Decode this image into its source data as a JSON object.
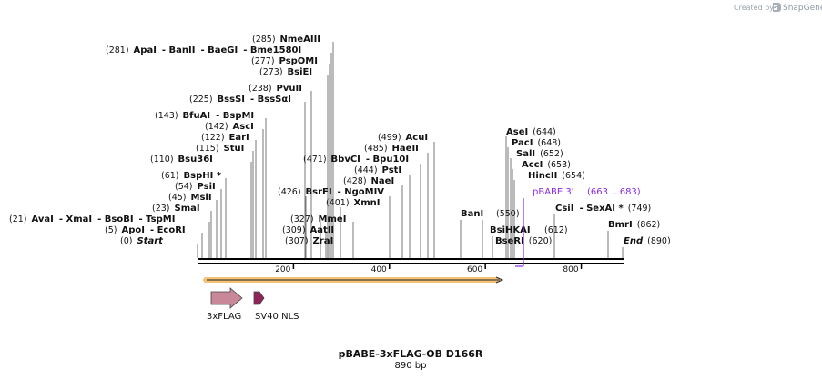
{
  "credit": {
    "prefix": "Created by",
    "brand": "SnapGene"
  },
  "title": "pBABE-3xFLAG-OB D166R",
  "length_label": "890 bp",
  "sites": [
    {
      "id": "s1",
      "seg": [
        {
          "t": "(21)",
          "k": "p"
        },
        {
          "t": "AvaI",
          "k": "n"
        },
        {
          "t": "- XmaI",
          "k": "s"
        },
        {
          "t": "- BsoBI",
          "k": "s"
        },
        {
          "t": "- TspMI",
          "k": "s"
        }
      ]
    },
    {
      "id": "s2",
      "seg": [
        {
          "t": "(5)",
          "k": "p"
        },
        {
          "t": "ApoI",
          "k": "n"
        },
        {
          "t": "- EcoRI",
          "k": "s"
        }
      ]
    },
    {
      "id": "s3",
      "seg": [
        {
          "t": "(0)",
          "k": "p"
        },
        {
          "t": "Start",
          "k": "i"
        }
      ]
    },
    {
      "id": "s4",
      "seg": [
        {
          "t": "(23)",
          "k": "p"
        },
        {
          "t": "SmaI",
          "k": "n"
        }
      ]
    },
    {
      "id": "s5",
      "seg": [
        {
          "t": "(45)",
          "k": "p"
        },
        {
          "t": "MslI",
          "k": "n"
        }
      ]
    },
    {
      "id": "s6",
      "seg": [
        {
          "t": "(54)",
          "k": "p"
        },
        {
          "t": "PsiI",
          "k": "n"
        }
      ]
    },
    {
      "id": "s7",
      "seg": [
        {
          "t": "(61)",
          "k": "p"
        },
        {
          "t": "BspHI *",
          "k": "n"
        }
      ]
    },
    {
      "id": "s8",
      "seg": [
        {
          "t": "(110)",
          "k": "p"
        },
        {
          "t": "Bsu36I",
          "k": "n"
        }
      ]
    },
    {
      "id": "s9",
      "seg": [
        {
          "t": "(115)",
          "k": "p"
        },
        {
          "t": "StuI",
          "k": "n"
        }
      ]
    },
    {
      "id": "s10",
      "seg": [
        {
          "t": "(122)",
          "k": "p"
        },
        {
          "t": "EarI",
          "k": "n"
        }
      ]
    },
    {
      "id": "s11",
      "seg": [
        {
          "t": "(142)",
          "k": "p"
        },
        {
          "t": "AscI",
          "k": "n"
        }
      ]
    },
    {
      "id": "s12",
      "seg": [
        {
          "t": "(143)",
          "k": "p"
        },
        {
          "t": "BfuAI",
          "k": "n"
        },
        {
          "t": "- BspMI",
          "k": "s"
        }
      ]
    },
    {
      "id": "s13",
      "seg": [
        {
          "t": "(225)",
          "k": "p"
        },
        {
          "t": "BssSI",
          "k": "n"
        },
        {
          "t": "- BssSαI",
          "k": "s"
        }
      ]
    },
    {
      "id": "s14",
      "seg": [
        {
          "t": "(238)",
          "k": "p"
        },
        {
          "t": "PvuII",
          "k": "n"
        }
      ]
    },
    {
      "id": "s15",
      "seg": [
        {
          "t": "(273)",
          "k": "p"
        },
        {
          "t": "BsiEI",
          "k": "n"
        }
      ]
    },
    {
      "id": "s16",
      "seg": [
        {
          "t": "(277)",
          "k": "p"
        },
        {
          "t": "PspOMI",
          "k": "n"
        }
      ]
    },
    {
      "id": "s17",
      "seg": [
        {
          "t": "(281)",
          "k": "p"
        },
        {
          "t": "ApaI",
          "k": "n"
        },
        {
          "t": "- BanII",
          "k": "s"
        },
        {
          "t": "- BaeGI",
          "k": "s"
        },
        {
          "t": "- Bme1580I",
          "k": "s"
        }
      ]
    },
    {
      "id": "s18",
      "seg": [
        {
          "t": "(285)",
          "k": "p"
        },
        {
          "t": "NmeAIII",
          "k": "n"
        }
      ]
    },
    {
      "id": "s19",
      "seg": [
        {
          "t": "(307)",
          "k": "p"
        },
        {
          "t": "ZraI",
          "k": "n"
        }
      ]
    },
    {
      "id": "s20",
      "seg": [
        {
          "t": "(309)",
          "k": "p"
        },
        {
          "t": "AatII",
          "k": "n"
        }
      ]
    },
    {
      "id": "s21",
      "seg": [
        {
          "t": "(327)",
          "k": "p"
        },
        {
          "t": "MmeI",
          "k": "n"
        }
      ]
    },
    {
      "id": "s22",
      "seg": [
        {
          "t": "(401)",
          "k": "p"
        },
        {
          "t": "XmnI",
          "k": "n"
        }
      ]
    },
    {
      "id": "s23",
      "seg": [
        {
          "t": "(426)",
          "k": "p"
        },
        {
          "t": "BsrFI",
          "k": "n"
        },
        {
          "t": "- NgoMIV",
          "k": "s"
        }
      ]
    },
    {
      "id": "s24",
      "seg": [
        {
          "t": "(428)",
          "k": "p"
        },
        {
          "t": "NaeI",
          "k": "n"
        }
      ]
    },
    {
      "id": "s25",
      "seg": [
        {
          "t": "(444)",
          "k": "p"
        },
        {
          "t": "PstI",
          "k": "n"
        }
      ]
    },
    {
      "id": "s26",
      "seg": [
        {
          "t": "(471)",
          "k": "p"
        },
        {
          "t": "BbvCI",
          "k": "n"
        },
        {
          "t": "- Bpu10I",
          "k": "s"
        }
      ]
    },
    {
      "id": "s27",
      "seg": [
        {
          "t": "(485)",
          "k": "p"
        },
        {
          "t": "HaeII",
          "k": "n"
        }
      ]
    },
    {
      "id": "s28",
      "seg": [
        {
          "t": "(499)",
          "k": "p"
        },
        {
          "t": "AcuI",
          "k": "n"
        }
      ]
    },
    {
      "id": "s29",
      "seg": [
        {
          "t": "BanI",
          "k": "n"
        }
      ]
    },
    {
      "id": "s30",
      "seg": [
        {
          "t": "(550)",
          "k": "p"
        }
      ]
    },
    {
      "id": "s31",
      "seg": [
        {
          "t": "BsiHKAI",
          "k": "n"
        }
      ]
    },
    {
      "id": "s32",
      "seg": [
        {
          "t": "BseRI",
          "k": "n"
        },
        {
          "t": "(620)",
          "k": "p"
        }
      ]
    },
    {
      "id": "s33",
      "seg": [
        {
          "t": "AseI",
          "k": "n"
        },
        {
          "t": "(644)",
          "k": "p"
        }
      ]
    },
    {
      "id": "s34",
      "seg": [
        {
          "t": "PacI",
          "k": "n"
        },
        {
          "t": "(648)",
          "k": "p"
        }
      ]
    },
    {
      "id": "s35",
      "seg": [
        {
          "t": "SalI",
          "k": "n"
        },
        {
          "t": "(652)",
          "k": "p"
        }
      ]
    },
    {
      "id": "s36",
      "seg": [
        {
          "t": "AccI",
          "k": "n"
        },
        {
          "t": "(653)",
          "k": "p"
        }
      ]
    },
    {
      "id": "s37",
      "seg": [
        {
          "t": "HincII",
          "k": "n"
        },
        {
          "t": "(654)",
          "k": "p"
        }
      ]
    },
    {
      "id": "s38",
      "seg": [
        {
          "t": "CsiI",
          "k": "n"
        },
        {
          "t": "- SexAI *",
          "k": "s"
        },
        {
          "t": "(749)",
          "k": "p"
        }
      ]
    },
    {
      "id": "s39",
      "seg": [
        {
          "t": "(612)",
          "k": "p"
        }
      ]
    },
    {
      "id": "s40",
      "seg": [
        {
          "t": "BmrI",
          "k": "n"
        },
        {
          "t": "(862)",
          "k": "p"
        }
      ]
    },
    {
      "id": "s41",
      "seg": [
        {
          "t": "End",
          "k": "i"
        },
        {
          "t": "(890)",
          "k": "p"
        }
      ]
    }
  ],
  "primer": {
    "name": "pBABE 3'",
    "range": "(663 .. 683)",
    "color": "#8a2be2"
  },
  "ticks": [
    "200",
    "400",
    "600",
    "800"
  ],
  "features": [
    {
      "name": "3xFLAG",
      "color": "#c9879a"
    },
    {
      "name": "SV40 NLS",
      "color": "#8e2457"
    }
  ],
  "orf_color": "#f2c27a"
}
